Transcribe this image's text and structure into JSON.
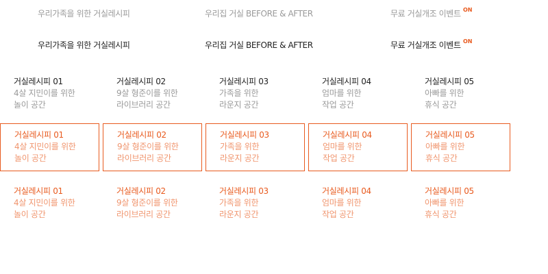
{
  "colors": {
    "accent": "#e85a1e",
    "accent_light": "#f0956e",
    "text_dark": "#222222",
    "text_gray": "#9a9a9a"
  },
  "nav": {
    "items": [
      {
        "label": "우리가족을 위한 거실레시피"
      },
      {
        "label": "우리집 거실 BEFORE & AFTER"
      },
      {
        "label": "무료 거실개조 이벤트",
        "badge": "ON"
      }
    ]
  },
  "recipes": [
    {
      "title": "거실레시피 01",
      "line1": "4살 지민이를 위한",
      "line2": "놀이 공간"
    },
    {
      "title": "거실레시피 02",
      "line1": "9살 형준이를 위한",
      "line2": "라이브러리 공간"
    },
    {
      "title": "거실레시피 03",
      "line1": "가족을 위한",
      "line2": "라운지 공간"
    },
    {
      "title": "거실레시피 04",
      "line1": "엄마를 위한",
      "line2": "작업 공간"
    },
    {
      "title": "거실레시피 05",
      "line1": "아빠를 위한",
      "line2": "휴식 공간"
    }
  ]
}
